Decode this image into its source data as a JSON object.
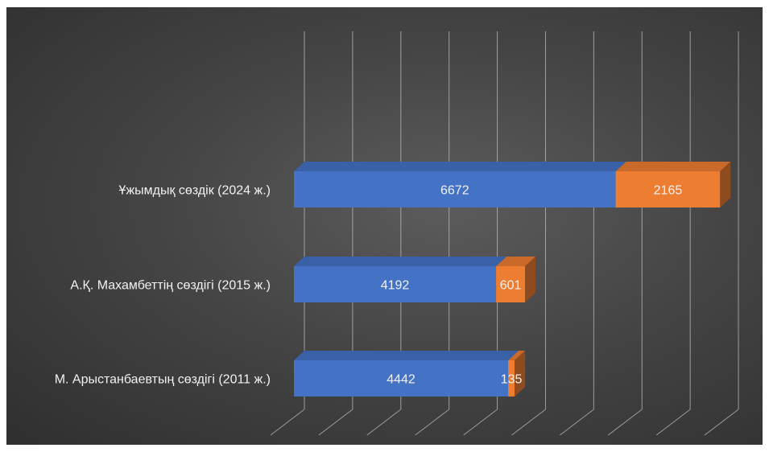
{
  "chart_data": {
    "type": "bar",
    "orientation": "horizontal",
    "stacked": true,
    "style_3d": true,
    "categories": [
      "Ұжымдық сөздік (2024 ж.)",
      "А.Қ. Махамбеттің сөздігі (2015 ж.)",
      "М. Арыстанбаевтың сөздігі (2011 ж.)"
    ],
    "series": [
      {
        "values": [
          6672,
          4192,
          4442
        ],
        "color": "#4472c4"
      },
      {
        "values": [
          2165,
          601,
          135
        ],
        "color": "#ed7d31"
      }
    ],
    "xlim": [
      0,
      9500
    ],
    "grid": true,
    "background": "#4a4a4a",
    "text_color": "#f2f2f2"
  }
}
